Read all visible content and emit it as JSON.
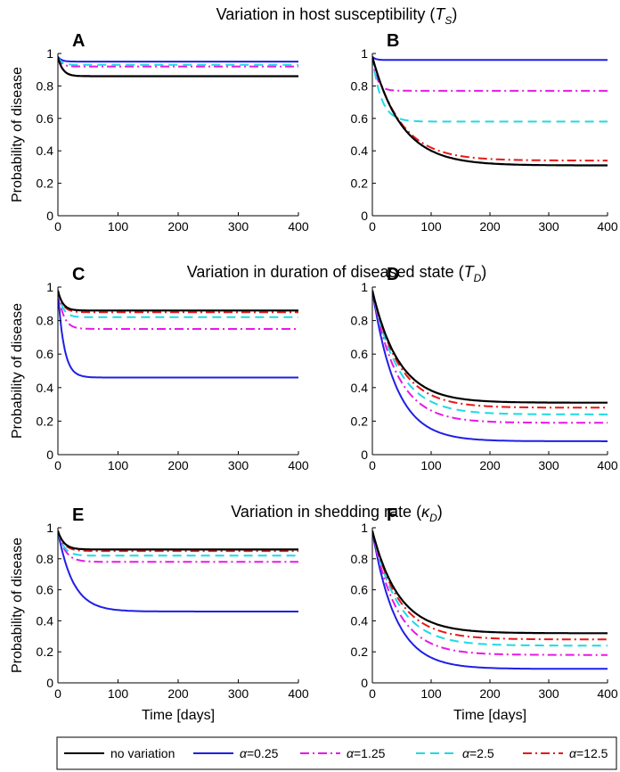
{
  "section_titles": [
    {
      "main": "Variation in host susceptibility (",
      "sym": "T",
      "sub": "S",
      "close": ")"
    },
    {
      "main": "Variation in duration of diseased state (",
      "sym": "T",
      "sub": "D",
      "close": ")"
    },
    {
      "main": "Variation in shedding rate (",
      "sym": "κ",
      "sub": "D",
      "close": ")"
    }
  ],
  "ylabel": "Probability of disease",
  "xlabel": "Time [days]",
  "legend": [
    {
      "label": "no variation",
      "prefix": "",
      "color": "#000000",
      "dash": ""
    },
    {
      "label": "=0.25",
      "prefix": "α",
      "color": "#1f1fe6",
      "dash": ""
    },
    {
      "label": "=1.25",
      "prefix": "α",
      "color": "#e619e6",
      "dash": "10,4,2,4"
    },
    {
      "label": "=2.5",
      "prefix": "α",
      "color": "#1fd9e6",
      "dash": "10,6"
    },
    {
      "label": "=12.5",
      "prefix": "α",
      "color": "#e61919",
      "dash": "10,4,2,4"
    }
  ],
  "chart_data": [
    {
      "type": "line",
      "panel": "A",
      "xlim": [
        0,
        400
      ],
      "ylim": [
        0,
        1
      ],
      "xticks": [
        0,
        100,
        200,
        300,
        400
      ],
      "yticks": [
        0,
        0.2,
        0.4,
        0.6,
        0.8,
        1
      ],
      "tick_labels_y": [
        "0",
        "0.2",
        "0.4",
        "0.6",
        "0.8",
        "1"
      ],
      "series": [
        {
          "name": "no variation",
          "start": 0.98,
          "end": 0.86,
          "tau": 8
        },
        {
          "name": "α=0.25",
          "start": 0.98,
          "end": 0.95,
          "tau": 6
        },
        {
          "name": "α=1.25",
          "start": 0.98,
          "end": 0.92,
          "tau": 6
        },
        {
          "name": "α=2.5",
          "start": 0.98,
          "end": 0.93,
          "tau": 6
        },
        {
          "name": "α=12.5",
          "start": 0.98,
          "end": 0.86,
          "tau": 8
        }
      ]
    },
    {
      "type": "line",
      "panel": "B",
      "xlim": [
        0,
        400
      ],
      "ylim": [
        0,
        1
      ],
      "xticks": [
        0,
        100,
        200,
        300,
        400
      ],
      "yticks": [
        0,
        0.2,
        0.4,
        0.6,
        0.8,
        1
      ],
      "tick_labels_y": [
        "0",
        "0.2",
        "0.4",
        "0.6",
        "0.8",
        "1"
      ],
      "series": [
        {
          "name": "no variation",
          "start": 0.98,
          "end": 0.31,
          "tau": 50
        },
        {
          "name": "α=0.25",
          "start": 0.98,
          "end": 0.96,
          "tau": 5
        },
        {
          "name": "α=1.25",
          "start": 0.98,
          "end": 0.77,
          "tau": 8
        },
        {
          "name": "α=2.5",
          "start": 0.98,
          "end": 0.58,
          "tau": 15
        },
        {
          "name": "α=12.5",
          "start": 0.98,
          "end": 0.34,
          "tau": 48
        }
      ]
    },
    {
      "type": "line",
      "panel": "C",
      "xlim": [
        0,
        400
      ],
      "ylim": [
        0,
        1
      ],
      "xticks": [
        0,
        100,
        200,
        300,
        400
      ],
      "yticks": [
        0,
        0.2,
        0.4,
        0.6,
        0.8,
        1
      ],
      "tick_labels_y": [
        "0",
        "0.2",
        "0.4",
        "0.6",
        "0.8",
        "1"
      ],
      "series": [
        {
          "name": "no variation",
          "start": 0.98,
          "end": 0.86,
          "tau": 8
        },
        {
          "name": "α=0.25",
          "start": 0.98,
          "end": 0.46,
          "tau": 10
        },
        {
          "name": "α=1.25",
          "start": 0.98,
          "end": 0.75,
          "tau": 9
        },
        {
          "name": "α=2.5",
          "start": 0.98,
          "end": 0.82,
          "tau": 8
        },
        {
          "name": "α=12.5",
          "start": 0.98,
          "end": 0.85,
          "tau": 8
        }
      ]
    },
    {
      "type": "line",
      "panel": "D",
      "xlim": [
        0,
        400
      ],
      "ylim": [
        0,
        1
      ],
      "xticks": [
        0,
        100,
        200,
        300,
        400
      ],
      "yticks": [
        0,
        0.2,
        0.4,
        0.6,
        0.8,
        1
      ],
      "tick_labels_y": [
        "0",
        "0.2",
        "0.4",
        "0.6",
        "0.8",
        "1"
      ],
      "series": [
        {
          "name": "no variation",
          "start": 0.98,
          "end": 0.31,
          "tau": 45
        },
        {
          "name": "α=0.25",
          "start": 0.98,
          "end": 0.08,
          "tau": 40
        },
        {
          "name": "α=1.25",
          "start": 0.98,
          "end": 0.19,
          "tau": 42
        },
        {
          "name": "α=2.5",
          "start": 0.98,
          "end": 0.24,
          "tau": 44
        },
        {
          "name": "α=12.5",
          "start": 0.98,
          "end": 0.28,
          "tau": 45
        }
      ]
    },
    {
      "type": "line",
      "panel": "E",
      "xlim": [
        0,
        400
      ],
      "ylim": [
        0,
        1
      ],
      "xticks": [
        0,
        100,
        200,
        300,
        400
      ],
      "yticks": [
        0,
        0.2,
        0.4,
        0.6,
        0.8,
        1
      ],
      "tick_labels_y": [
        "0",
        "0.2",
        "0.4",
        "0.6",
        "0.8",
        "1"
      ],
      "series": [
        {
          "name": "no variation",
          "start": 0.98,
          "end": 0.86,
          "tau": 10
        },
        {
          "name": "α=0.25",
          "start": 0.98,
          "end": 0.46,
          "tau": 25
        },
        {
          "name": "α=1.25",
          "start": 0.98,
          "end": 0.78,
          "tau": 12
        },
        {
          "name": "α=2.5",
          "start": 0.98,
          "end": 0.82,
          "tau": 10
        },
        {
          "name": "α=12.5",
          "start": 0.98,
          "end": 0.85,
          "tau": 10
        }
      ]
    },
    {
      "type": "line",
      "panel": "F",
      "xlim": [
        0,
        400
      ],
      "ylim": [
        0,
        1
      ],
      "xticks": [
        0,
        100,
        200,
        300,
        400
      ],
      "yticks": [
        0,
        0.2,
        0.4,
        0.6,
        0.8,
        1
      ],
      "tick_labels_y": [
        "0",
        "0.2",
        "0.4",
        "0.6",
        "0.8",
        "1"
      ],
      "series": [
        {
          "name": "no variation",
          "start": 0.98,
          "end": 0.32,
          "tau": 45
        },
        {
          "name": "α=0.25",
          "start": 0.98,
          "end": 0.09,
          "tau": 40
        },
        {
          "name": "α=1.25",
          "start": 0.98,
          "end": 0.18,
          "tau": 42
        },
        {
          "name": "α=2.5",
          "start": 0.98,
          "end": 0.24,
          "tau": 44
        },
        {
          "name": "α=12.5",
          "start": 0.98,
          "end": 0.28,
          "tau": 45
        }
      ]
    }
  ]
}
